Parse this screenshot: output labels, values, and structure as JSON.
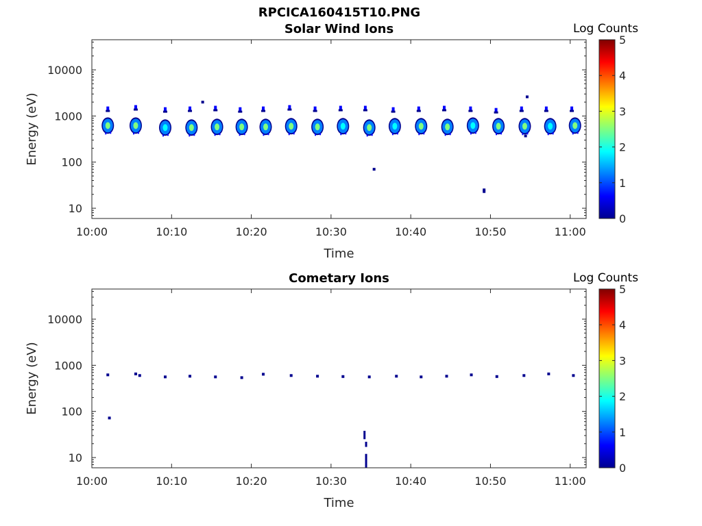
{
  "figure_title": "RPCICA160415T10.PNG",
  "colorscale": [
    "#00008f",
    "#0000ff",
    "#0080ff",
    "#00ffff",
    "#80ff80",
    "#ffff00",
    "#ff8000",
    "#ff0000",
    "#800000"
  ],
  "chart_data": [
    {
      "type": "heatmap",
      "title": "Solar Wind Ions",
      "xlabel": "Time",
      "ylabel": "Energy (eV)",
      "y_scale": "log",
      "ylim": [
        6,
        45000
      ],
      "xlim": [
        "10:00",
        "11:02"
      ],
      "x_ticks": [
        "10:00",
        "10:10",
        "10:20",
        "10:30",
        "10:40",
        "10:50",
        "11:00"
      ],
      "y_ticks": [
        10,
        100,
        1000,
        10000
      ],
      "y_tick_labels": [
        "10",
        "100",
        "1000",
        "10000"
      ],
      "colorbar": {
        "label": "Log Counts",
        "range": [
          0,
          5
        ],
        "ticks": [
          "0",
          "1",
          "2",
          "3",
          "4",
          "5"
        ]
      },
      "blobs": [
        {
          "time": "10:02",
          "energy": 620,
          "peak": 2.2
        },
        {
          "time": "10:05.5",
          "energy": 620,
          "peak": 2.5
        },
        {
          "time": "10:09.2",
          "energy": 560,
          "peak": 2.1
        },
        {
          "time": "10:12.5",
          "energy": 560,
          "peak": 2.2
        },
        {
          "time": "10:15.7",
          "energy": 580,
          "peak": 2.4
        },
        {
          "time": "10:18.8",
          "energy": 580,
          "peak": 2.2
        },
        {
          "time": "10:21.8",
          "energy": 580,
          "peak": 2.3
        },
        {
          "time": "10:25",
          "energy": 600,
          "peak": 2.4
        },
        {
          "time": "10:28.3",
          "energy": 580,
          "peak": 2.4
        },
        {
          "time": "10:31.5",
          "energy": 600,
          "peak": 1.9
        },
        {
          "time": "10:34.8",
          "energy": 560,
          "peak": 2.6
        },
        {
          "time": "10:38",
          "energy": 600,
          "peak": 2.1
        },
        {
          "time": "10:41.3",
          "energy": 600,
          "peak": 2.4
        },
        {
          "time": "10:44.6",
          "energy": 580,
          "peak": 2.4
        },
        {
          "time": "10:47.8",
          "energy": 620,
          "peak": 2.1
        },
        {
          "time": "10:51",
          "energy": 600,
          "peak": 2.2
        },
        {
          "time": "10:54.3",
          "energy": 600,
          "peak": 2.4
        },
        {
          "time": "10:57.5",
          "energy": 600,
          "peak": 2.1
        },
        {
          "time": "11:00.6",
          "energy": 620,
          "peak": 2.2
        }
      ],
      "upper_blips": [
        {
          "time": "10:02",
          "energy": 1400
        },
        {
          "time": "10:05.5",
          "energy": 1500
        },
        {
          "time": "10:09.2",
          "energy": 1350
        },
        {
          "time": "10:12.3",
          "energy": 1400
        },
        {
          "time": "10:15.5",
          "energy": 1450
        },
        {
          "time": "10:18.6",
          "energy": 1350
        },
        {
          "time": "10:21.5",
          "energy": 1400
        },
        {
          "time": "10:24.8",
          "energy": 1500
        },
        {
          "time": "10:28",
          "energy": 1400
        },
        {
          "time": "10:31.2",
          "energy": 1450
        },
        {
          "time": "10:34.3",
          "energy": 1450
        },
        {
          "time": "10:37.8",
          "energy": 1350
        },
        {
          "time": "10:41",
          "energy": 1400
        },
        {
          "time": "10:44.2",
          "energy": 1450
        },
        {
          "time": "10:47.5",
          "energy": 1400
        },
        {
          "time": "10:50.7",
          "energy": 1300
        },
        {
          "time": "10:53.9",
          "energy": 1400
        },
        {
          "time": "10:57",
          "energy": 1400
        },
        {
          "time": "11:00.2",
          "energy": 1400
        }
      ],
      "specks": [
        {
          "time": "10:13.9",
          "energy": 2000
        },
        {
          "time": "10:35.4",
          "energy": 70
        },
        {
          "time": "10:49.2",
          "energy": 25
        },
        {
          "time": "10:49.2",
          "energy": 23
        },
        {
          "time": "10:54.6",
          "energy": 2600
        },
        {
          "time": "10:54.4",
          "energy": 370
        }
      ]
    },
    {
      "type": "heatmap",
      "title": "Cometary Ions",
      "xlabel": "Time",
      "ylabel": "Energy (eV)",
      "y_scale": "log",
      "ylim": [
        6,
        45000
      ],
      "xlim": [
        "10:00",
        "11:02"
      ],
      "x_ticks": [
        "10:00",
        "10:10",
        "10:20",
        "10:30",
        "10:40",
        "10:50",
        "11:00"
      ],
      "y_ticks": [
        10,
        100,
        1000,
        10000
      ],
      "y_tick_labels": [
        "10",
        "100",
        "1000",
        "10000"
      ],
      "colorbar": {
        "label": "Log Counts",
        "range": [
          0,
          5
        ],
        "ticks": [
          "0",
          "1",
          "2",
          "3",
          "4",
          "5"
        ]
      },
      "specks": [
        {
          "time": "10:02",
          "energy": 620
        },
        {
          "time": "10:05.5",
          "energy": 650
        },
        {
          "time": "10:06",
          "energy": 600
        },
        {
          "time": "10:09.2",
          "energy": 560
        },
        {
          "time": "10:12.3",
          "energy": 580
        },
        {
          "time": "10:15.5",
          "energy": 560
        },
        {
          "time": "10:18.8",
          "energy": 540
        },
        {
          "time": "10:21.5",
          "energy": 640
        },
        {
          "time": "10:25",
          "energy": 600
        },
        {
          "time": "10:28.3",
          "energy": 580
        },
        {
          "time": "10:31.5",
          "energy": 570
        },
        {
          "time": "10:34.8",
          "energy": 560
        },
        {
          "time": "10:38.2",
          "energy": 580
        },
        {
          "time": "10:41.3",
          "energy": 560
        },
        {
          "time": "10:44.5",
          "energy": 580
        },
        {
          "time": "10:47.6",
          "energy": 620
        },
        {
          "time": "10:50.8",
          "energy": 570
        },
        {
          "time": "10:54.2",
          "energy": 600
        },
        {
          "time": "10:57.3",
          "energy": 650
        },
        {
          "time": "11:00.4",
          "energy": 600
        },
        {
          "time": "10:02.2",
          "energy": 72
        }
      ],
      "streaks": [
        {
          "time": "10:34.2",
          "energy_low": 25,
          "energy_high": 38
        },
        {
          "time": "10:34.4",
          "energy_low": 17,
          "energy_high": 22
        },
        {
          "time": "10:34.4",
          "energy_low": 6,
          "energy_high": 12
        }
      ]
    }
  ]
}
